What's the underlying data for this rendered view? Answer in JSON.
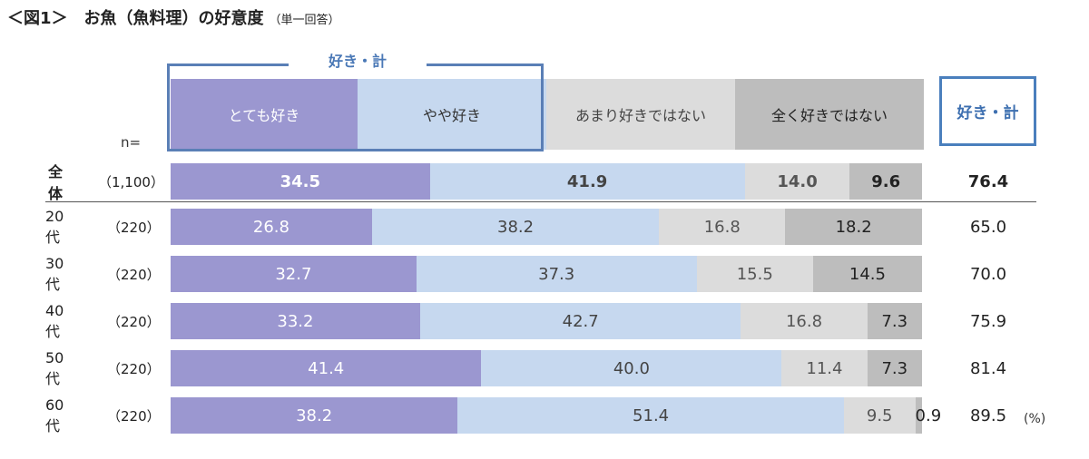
{
  "title": {
    "main": "＜図1＞　お魚（魚料理）の好意度",
    "sub": "（単一回答）"
  },
  "like_total_header": "好き・計",
  "like_total_box_label": "好き・計",
  "n_label": "n=",
  "unit": "(%)",
  "colors": {
    "very_like": "#9b97d0",
    "somewhat_like": "#c6d8ef",
    "not_really_like": "#dcdcdc",
    "not_at_all_like": "#bdbdbd",
    "accent_box": "#4a7fbd"
  },
  "chart_data": {
    "type": "bar",
    "stacked": true,
    "orientation": "horizontal",
    "percent": true,
    "title": "＜図1＞　お魚（魚料理）の好意度",
    "subtitle": "（単一回答）",
    "legend": [
      "とても好き",
      "やや好き",
      "あまり好きではない",
      "全く好きではない"
    ],
    "categories": [
      "全体",
      "20代",
      "30代",
      "40代",
      "50代",
      "60代"
    ],
    "n": [
      "（1,100）",
      "（220）",
      "（220）",
      "（220）",
      "（220）",
      "（220）"
    ],
    "series": [
      {
        "name": "とても好き",
        "values": [
          34.5,
          26.8,
          32.7,
          33.2,
          41.4,
          38.2
        ]
      },
      {
        "name": "やや好き",
        "values": [
          41.9,
          38.2,
          37.3,
          42.7,
          40.0,
          51.4
        ]
      },
      {
        "name": "あまり好きではない",
        "values": [
          14.0,
          16.8,
          15.5,
          16.8,
          11.4,
          9.5
        ]
      },
      {
        "name": "全く好きではない",
        "values": [
          9.6,
          18.2,
          14.5,
          7.3,
          7.3,
          0.9
        ]
      }
    ],
    "labels": [
      [
        "34.5",
        "41.9",
        "14.0",
        "9.6"
      ],
      [
        "26.8",
        "38.2",
        "16.8",
        "18.2"
      ],
      [
        "32.7",
        "37.3",
        "15.5",
        "14.5"
      ],
      [
        "33.2",
        "42.7",
        "16.8",
        "7.3"
      ],
      [
        "41.4",
        "40.0",
        "11.4",
        "7.3"
      ],
      [
        "38.2",
        "51.4",
        "9.5",
        "0.9"
      ]
    ],
    "like_total": [
      "76.4",
      "65.0",
      "70.0",
      "75.9",
      "81.4",
      "89.5"
    ],
    "xlim": [
      0,
      100
    ]
  }
}
